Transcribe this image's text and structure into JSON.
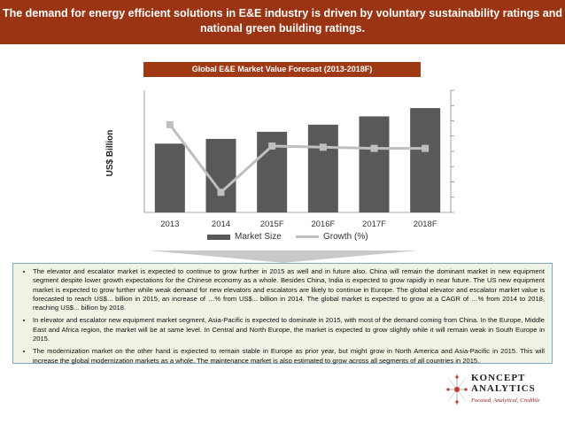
{
  "header": {
    "line1": "The demand for energy efficient solutions in E&E industry is driven by voluntary sustainability ratings and",
    "line2": "national green building ratings."
  },
  "chart_title": "Global E&E Market Value Forecast (2013-2018F)",
  "chart_data": {
    "type": "bar",
    "categories": [
      "2013",
      "2014",
      "2015F",
      "2016F",
      "2017F",
      "2018F"
    ],
    "ylabel": "US$ Billion",
    "series": [
      {
        "name": "Market Size",
        "type": "bar",
        "values": [
          58,
          62,
          68,
          74,
          81,
          88
        ]
      },
      {
        "name": "Growth (%)",
        "type": "line",
        "values": [
          74,
          17,
          56,
          55,
          54,
          54
        ]
      }
    ],
    "ylim": [
      0,
      100
    ],
    "legend": "bottom",
    "colors": {
      "bar": "#595959",
      "line": "#bfbfbf"
    }
  },
  "bullets": [
    "The elevator and escalator market is expected to continue to grow further in 2015 as well and in future also. China will remain the dominant market in new equipment segment despite lower growth expectations for the Chinese economy as a whole. Besides China, India is expected to grow rapidly in near future. The US new equipment market is expected to grow further while weak demand for new elevators and escalators are likely to continue in Europe. The global elevator and escalator market value is forecasted to reach US$... billion in 2015, an increase of …% from US$... billion in 2014. The global market is expected to grow at a CAGR of …% from 2014 to 2018, reaching US$... billion by 2018.",
    "In elevator and escalator new equipment market segment, Asia-Pacific is expected to dominate in 2015, with most of the demand coming from China. In the Europe, Middle East and Africa region, the market will be at same level. In Central and North Europe, the market is expected to grow slightly while it will remain weak in South Europe in 2015.",
    "The modernization market on the other hand is expected to remain stable in Europe as prior year, but might grow in North America and Asia-Pacific in 2015. This will increase the global modernization markets as a whole. The maintenance market is also estimated to grow across all segments of all countries in 2015."
  ],
  "logo": {
    "line1": "KONCEPT",
    "line2": "ANALYTICS",
    "tagline": "Focused, Analytical, Credible"
  }
}
